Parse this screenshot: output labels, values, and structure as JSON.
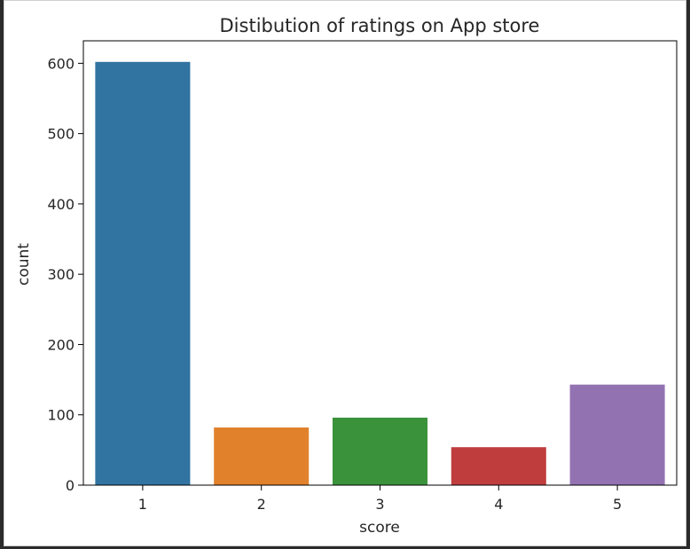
{
  "chart_data": {
    "type": "bar",
    "title": "Distibution of ratings on App store",
    "xlabel": "score",
    "ylabel": "count",
    "categories": [
      "1",
      "2",
      "3",
      "4",
      "5"
    ],
    "values": [
      602,
      82,
      96,
      54,
      143
    ],
    "ylim": [
      0,
      632
    ],
    "yticks": [
      "0",
      "100",
      "200",
      "300",
      "400",
      "500",
      "600"
    ],
    "colors": [
      "#3274a1",
      "#e1812c",
      "#3a923a",
      "#c03d3e",
      "#9372b2"
    ],
    "grid": false,
    "legend": "none"
  }
}
